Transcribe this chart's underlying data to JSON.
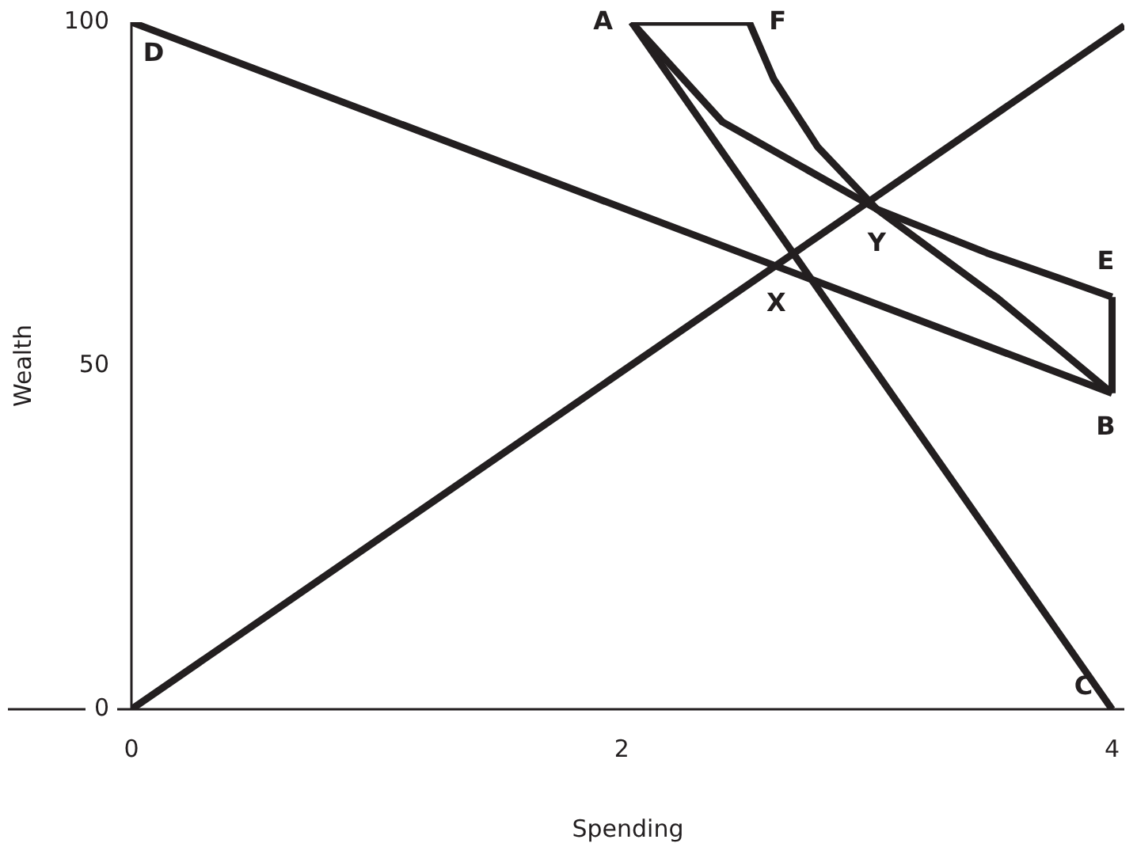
{
  "chart_data": {
    "type": "line",
    "xlabel": "Spending",
    "ylabel": "Wealth",
    "xlim": [
      0,
      4.05
    ],
    "ylim": [
      0,
      100
    ],
    "xticks": [
      0,
      2,
      4
    ],
    "yticks": [
      0,
      50,
      100
    ],
    "marker": "none",
    "line_style": "solid",
    "series": [
      {
        "color": "#231f20",
        "x": [
          0,
          4
        ],
        "values": [
          100,
          46
        ]
      },
      {
        "color": "#231f20",
        "x": [
          0,
          4.05
        ],
        "values": [
          0,
          99.5
        ]
      },
      {
        "color": "#231f20",
        "x": [
          2.04,
          4
        ],
        "values": [
          100,
          0
        ]
      },
      {
        "color": "#231f20",
        "x": [
          2.04,
          2.52
        ],
        "values": [
          100,
          100
        ]
      },
      {
        "color": "#231f20",
        "x": [
          2.04,
          2.41,
          3.04,
          3.53,
          4
        ],
        "values": [
          100,
          85.5,
          72.8,
          59.9,
          46
        ]
      },
      {
        "color": "#231f20",
        "x": [
          2.52,
          2.62,
          2.8,
          3.04,
          3.49,
          3.81,
          4
        ],
        "values": [
          100,
          91.7,
          81.8,
          72.8,
          66.4,
          62.4,
          60
        ]
      },
      {
        "color": "#231f20",
        "x": [
          4,
          4
        ],
        "values": [
          60,
          46
        ]
      }
    ],
    "annotations": [
      {
        "text": "D",
        "x": 0,
        "y": 100
      },
      {
        "text": "A",
        "x": 2.04,
        "y": 100
      },
      {
        "text": "F",
        "x": 2.52,
        "y": 100
      },
      {
        "text": "Y",
        "x": 3.04,
        "y": 72.8
      },
      {
        "text": "X",
        "x": 2.63,
        "y": 64.5
      },
      {
        "text": "E",
        "x": 4,
        "y": 60
      },
      {
        "text": "B",
        "x": 4,
        "y": 46
      },
      {
        "text": "C",
        "x": 4,
        "y": 0
      }
    ]
  }
}
